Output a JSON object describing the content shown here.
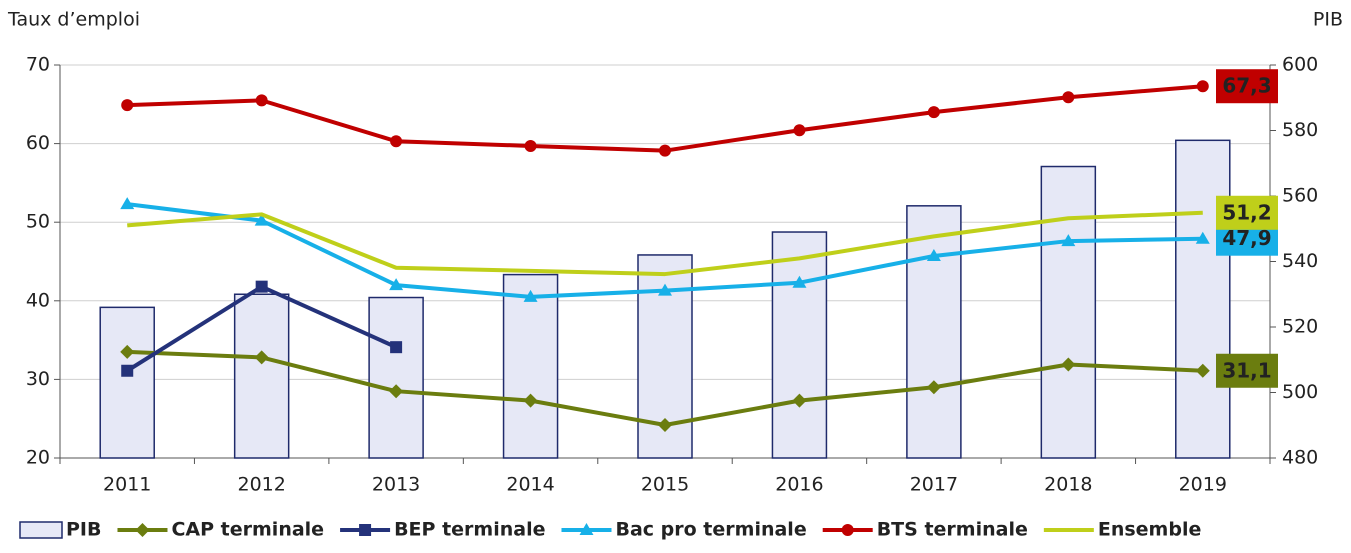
{
  "chart_data": {
    "type": "bar_line",
    "y_label": "Taux d’emploi",
    "y2_label": "PIB",
    "categories": [
      "2011",
      "2012",
      "2013",
      "2014",
      "2015",
      "2016",
      "2017",
      "2018",
      "2019"
    ],
    "ylim": [
      20,
      70
    ],
    "yticks": [
      20,
      30,
      40,
      50,
      60,
      70
    ],
    "y2lim": [
      480,
      600
    ],
    "y2ticks": [
      480,
      500,
      520,
      540,
      560,
      580,
      600
    ],
    "legend": "bottom",
    "series": [
      {
        "name": "PIB",
        "type": "bar",
        "axis": "y2",
        "color": "#e6e8f6",
        "edge": "#1f2a6b",
        "values": [
          526,
          530,
          529,
          536,
          542,
          549,
          557,
          569,
          577
        ]
      },
      {
        "name": "CAP terminale",
        "type": "line",
        "marker": "diamond",
        "color": "#6b7d0f",
        "values": [
          33.5,
          32.8,
          28.5,
          27.3,
          24.2,
          27.3,
          29.0,
          31.9,
          31.1
        ],
        "value_labels": [
          null,
          null,
          null,
          null,
          null,
          null,
          null,
          null,
          "31,1"
        ],
        "label_text": "#ffffff"
      },
      {
        "name": "BEP terminale",
        "type": "line",
        "marker": "square",
        "color": "#24327a",
        "values": [
          31.1,
          41.8,
          34.1,
          null,
          null,
          null,
          null,
          null,
          null
        ]
      },
      {
        "name": "Bac pro terminale",
        "type": "line",
        "marker": "triangle",
        "color": "#17b0e8",
        "values": [
          52.3,
          50.2,
          42.0,
          40.5,
          41.3,
          42.3,
          45.7,
          47.6,
          47.9
        ],
        "value_labels": [
          null,
          null,
          null,
          null,
          null,
          null,
          null,
          null,
          "47,9"
        ],
        "label_text": "#ffffff"
      },
      {
        "name": "BTS terminale",
        "type": "line",
        "marker": "circle",
        "color": "#c00000",
        "values": [
          64.9,
          65.5,
          60.3,
          59.7,
          59.1,
          61.7,
          64.0,
          65.9,
          67.3
        ],
        "value_labels": [
          null,
          null,
          null,
          null,
          null,
          null,
          null,
          null,
          "67,3"
        ],
        "label_text": "#ffffff"
      },
      {
        "name": "Ensemble",
        "type": "line",
        "marker": "none",
        "color": "#bfcf1a",
        "values": [
          49.6,
          51.0,
          44.2,
          43.8,
          43.4,
          45.4,
          48.2,
          50.5,
          51.2
        ],
        "value_labels": [
          null,
          null,
          null,
          null,
          null,
          null,
          null,
          null,
          "51,2"
        ],
        "label_text": "#2a2a00"
      }
    ]
  }
}
